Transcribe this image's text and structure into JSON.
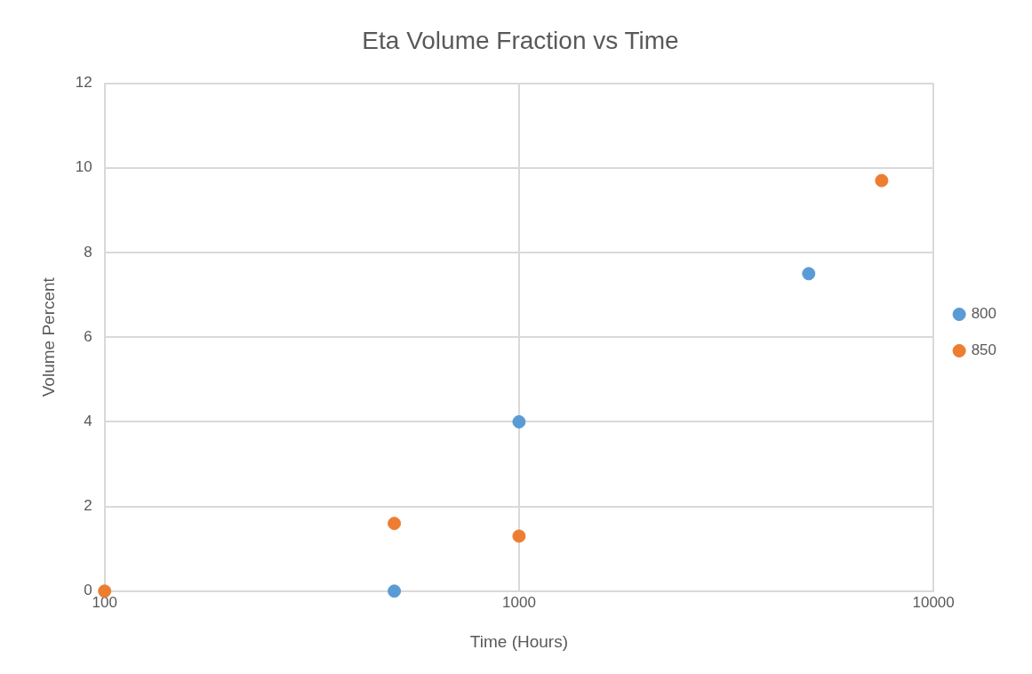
{
  "chart_data": {
    "type": "scatter",
    "title": "Eta Volume Fraction vs Time",
    "xlabel": "Time (Hours)",
    "ylabel": "Volume Percent",
    "log": "x",
    "xlim": [
      100,
      10000
    ],
    "xticks": [
      100,
      1000,
      10000
    ],
    "ylim": [
      0,
      12
    ],
    "yticks": [
      0,
      2,
      4,
      6,
      8,
      10,
      12
    ],
    "grid": true,
    "legend": "right",
    "marker": "circle",
    "series": [
      {
        "name": "800",
        "color": "#5b9bd5",
        "x": [
          500,
          1000,
          5000
        ],
        "values": [
          0,
          4,
          7.5
        ]
      },
      {
        "name": "850",
        "color": "#ed7d31",
        "x": [
          100,
          500,
          1000,
          7500
        ],
        "values": [
          0,
          1.6,
          1.3,
          9.7
        ]
      }
    ]
  }
}
